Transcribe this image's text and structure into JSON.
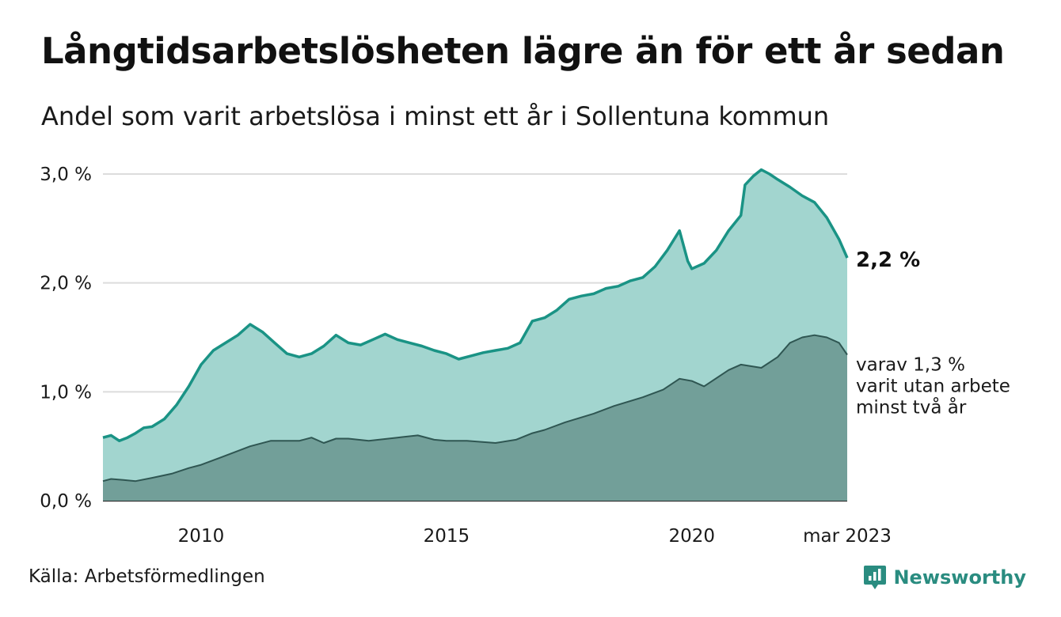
{
  "title": "Långtidsarbetslösheten lägre än för ett år sedan",
  "subtitle": "Andel som varit arbetslösa i minst ett år i Sollentuna kommun",
  "source": "Källa: Arbetsförmedlingen",
  "brand": "Newsworthy",
  "chart_data": {
    "type": "area",
    "x_range": [
      "2008-01",
      "2023-03"
    ],
    "ylim": [
      0,
      3.0
    ],
    "yticks": [
      0,
      1.0,
      2.0,
      3.0
    ],
    "ytick_labels": [
      "0,0 %",
      "1,0 %",
      "2,0 %",
      "3,0 %"
    ],
    "xtick_labels": [
      {
        "x": "2010-01",
        "label": "2010"
      },
      {
        "x": "2015-01",
        "label": "2015"
      },
      {
        "x": "2020-01",
        "label": "2020"
      },
      {
        "x": "2023-03",
        "label": "mar 2023"
      }
    ],
    "grid": true,
    "series": [
      {
        "key": "total",
        "color_line": "#1a9385",
        "color_fill": "#a2d5cf",
        "end_label": "2,2 %",
        "points": [
          [
            "2008-01",
            0.58
          ],
          [
            "2008-03",
            0.6
          ],
          [
            "2008-05",
            0.55
          ],
          [
            "2008-07",
            0.58
          ],
          [
            "2008-09",
            0.62
          ],
          [
            "2008-11",
            0.67
          ],
          [
            "2009-01",
            0.68
          ],
          [
            "2009-04",
            0.75
          ],
          [
            "2009-07",
            0.88
          ],
          [
            "2009-10",
            1.05
          ],
          [
            "2010-01",
            1.25
          ],
          [
            "2010-04",
            1.38
          ],
          [
            "2010-07",
            1.45
          ],
          [
            "2010-10",
            1.52
          ],
          [
            "2011-01",
            1.62
          ],
          [
            "2011-04",
            1.55
          ],
          [
            "2011-07",
            1.45
          ],
          [
            "2011-10",
            1.35
          ],
          [
            "2012-01",
            1.32
          ],
          [
            "2012-04",
            1.35
          ],
          [
            "2012-07",
            1.42
          ],
          [
            "2012-10",
            1.52
          ],
          [
            "2013-01",
            1.45
          ],
          [
            "2013-04",
            1.43
          ],
          [
            "2013-07",
            1.48
          ],
          [
            "2013-10",
            1.53
          ],
          [
            "2014-01",
            1.48
          ],
          [
            "2014-04",
            1.45
          ],
          [
            "2014-07",
            1.42
          ],
          [
            "2014-10",
            1.38
          ],
          [
            "2015-01",
            1.35
          ],
          [
            "2015-04",
            1.3
          ],
          [
            "2015-07",
            1.33
          ],
          [
            "2015-10",
            1.36
          ],
          [
            "2016-01",
            1.38
          ],
          [
            "2016-04",
            1.4
          ],
          [
            "2016-07",
            1.45
          ],
          [
            "2016-10",
            1.65
          ],
          [
            "2017-01",
            1.68
          ],
          [
            "2017-04",
            1.75
          ],
          [
            "2017-07",
            1.85
          ],
          [
            "2017-10",
            1.88
          ],
          [
            "2018-01",
            1.9
          ],
          [
            "2018-04",
            1.95
          ],
          [
            "2018-07",
            1.97
          ],
          [
            "2018-10",
            2.02
          ],
          [
            "2019-01",
            2.05
          ],
          [
            "2019-04",
            2.15
          ],
          [
            "2019-07",
            2.3
          ],
          [
            "2019-10",
            2.48
          ],
          [
            "2019-12",
            2.2
          ],
          [
            "2020-01",
            2.13
          ],
          [
            "2020-04",
            2.18
          ],
          [
            "2020-07",
            2.3
          ],
          [
            "2020-10",
            2.48
          ],
          [
            "2021-01",
            2.62
          ],
          [
            "2021-02",
            2.9
          ],
          [
            "2021-04",
            2.98
          ],
          [
            "2021-06",
            3.04
          ],
          [
            "2021-08",
            3.0
          ],
          [
            "2021-10",
            2.95
          ],
          [
            "2022-01",
            2.88
          ],
          [
            "2022-04",
            2.8
          ],
          [
            "2022-07",
            2.74
          ],
          [
            "2022-10",
            2.6
          ],
          [
            "2023-01",
            2.4
          ],
          [
            "2023-03",
            2.23
          ]
        ]
      },
      {
        "key": "two_years",
        "color_line": "#2f5652",
        "color_fill": "#729f99",
        "end_label": [
          "varav 1,3 %",
          "varit utan arbete",
          "minst två år"
        ],
        "points": [
          [
            "2008-01",
            0.18
          ],
          [
            "2008-03",
            0.2
          ],
          [
            "2008-06",
            0.19
          ],
          [
            "2008-09",
            0.18
          ],
          [
            "2009-01",
            0.21
          ],
          [
            "2009-06",
            0.25
          ],
          [
            "2009-10",
            0.3
          ],
          [
            "2010-01",
            0.33
          ],
          [
            "2010-06",
            0.4
          ],
          [
            "2011-01",
            0.5
          ],
          [
            "2011-06",
            0.55
          ],
          [
            "2012-01",
            0.55
          ],
          [
            "2012-04",
            0.58
          ],
          [
            "2012-07",
            0.53
          ],
          [
            "2012-10",
            0.57
          ],
          [
            "2013-01",
            0.57
          ],
          [
            "2013-06",
            0.55
          ],
          [
            "2014-01",
            0.58
          ],
          [
            "2014-06",
            0.6
          ],
          [
            "2014-10",
            0.56
          ],
          [
            "2015-01",
            0.55
          ],
          [
            "2015-06",
            0.55
          ],
          [
            "2016-01",
            0.53
          ],
          [
            "2016-06",
            0.56
          ],
          [
            "2016-10",
            0.62
          ],
          [
            "2017-01",
            0.65
          ],
          [
            "2017-06",
            0.72
          ],
          [
            "2018-01",
            0.8
          ],
          [
            "2018-06",
            0.87
          ],
          [
            "2019-01",
            0.95
          ],
          [
            "2019-06",
            1.02
          ],
          [
            "2019-10",
            1.12
          ],
          [
            "2020-01",
            1.1
          ],
          [
            "2020-04",
            1.05
          ],
          [
            "2020-10",
            1.2
          ],
          [
            "2021-01",
            1.25
          ],
          [
            "2021-06",
            1.22
          ],
          [
            "2021-10",
            1.32
          ],
          [
            "2022-01",
            1.45
          ],
          [
            "2022-04",
            1.5
          ],
          [
            "2022-07",
            1.52
          ],
          [
            "2022-10",
            1.5
          ],
          [
            "2023-01",
            1.45
          ],
          [
            "2023-03",
            1.34
          ]
        ]
      }
    ]
  }
}
